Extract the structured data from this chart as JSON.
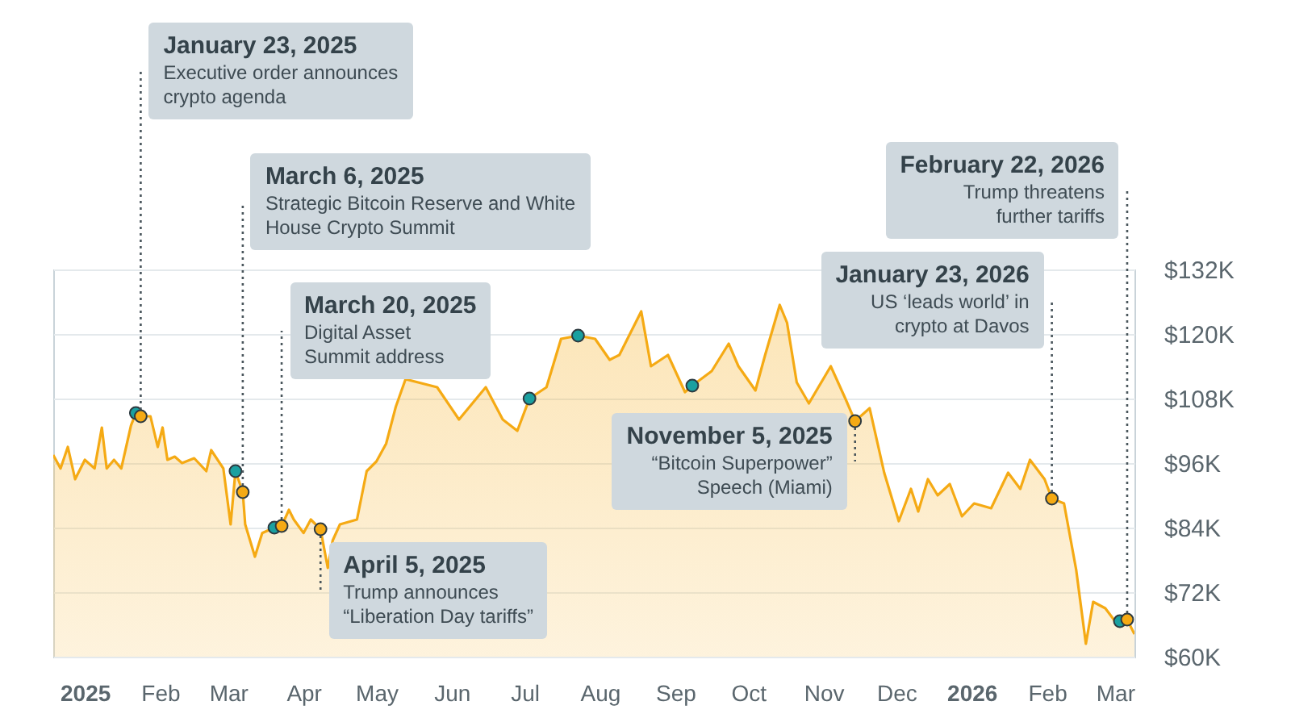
{
  "chart_data": {
    "type": "area",
    "x": [
      "2024-12-19",
      "2024-12-22",
      "2024-12-25",
      "2024-12-28",
      "2025-01-01",
      "2025-01-05",
      "2025-01-08",
      "2025-01-10",
      "2025-01-13",
      "2025-01-16",
      "2025-01-20",
      "2025-01-22",
      "2025-01-24",
      "2025-01-28",
      "2025-01-31",
      "2025-02-02",
      "2025-02-04",
      "2025-02-07",
      "2025-02-10",
      "2025-02-15",
      "2025-02-20",
      "2025-02-22",
      "2025-02-27",
      "2025-03-02",
      "2025-03-04",
      "2025-03-07",
      "2025-03-08",
      "2025-03-12",
      "2025-03-15",
      "2025-03-20",
      "2025-03-23",
      "2025-03-26",
      "2025-03-28",
      "2025-04-01",
      "2025-04-04",
      "2025-04-08",
      "2025-04-11",
      "2025-04-13",
      "2025-04-16",
      "2025-04-23",
      "2025-04-27",
      "2025-05-01",
      "2025-05-05",
      "2025-05-09",
      "2025-05-13",
      "2025-05-26",
      "2025-06-04",
      "2025-06-15",
      "2025-06-22",
      "2025-06-28",
      "2025-07-03",
      "2025-07-10",
      "2025-07-16",
      "2025-07-23",
      "2025-07-30",
      "2025-08-05",
      "2025-08-09",
      "2025-08-18",
      "2025-08-22",
      "2025-08-29",
      "2025-09-05",
      "2025-09-08",
      "2025-09-16",
      "2025-09-23",
      "2025-09-27",
      "2025-10-04",
      "2025-10-08",
      "2025-10-14",
      "2025-10-17",
      "2025-10-21",
      "2025-10-26",
      "2025-11-04",
      "2025-11-10",
      "2025-11-14",
      "2025-11-20",
      "2025-11-26",
      "2025-12-02",
      "2025-12-07",
      "2025-12-10",
      "2025-12-14",
      "2025-12-18",
      "2025-12-23",
      "2025-12-28",
      "2026-01-02",
      "2026-01-09",
      "2026-01-16",
      "2026-01-21",
      "2026-01-25",
      "2026-01-31",
      "2026-02-03",
      "2026-02-08",
      "2026-02-13",
      "2026-02-17",
      "2026-02-20",
      "2026-02-25",
      "2026-03-02",
      "2026-03-03",
      "2026-03-06",
      "2026-03-09"
    ],
    "series": [
      {
        "color": "#f5aa14",
        "values": [
          97.5,
          95,
          99,
          93,
          96.6,
          95,
          102.6,
          95,
          96.6,
          95,
          103,
          105.3,
          104.7,
          104.7,
          99,
          102.6,
          96.6,
          97.2,
          96,
          96.9,
          94.5,
          98.4,
          95,
          84.6,
          94.5,
          90.6,
          84.6,
          78.6,
          83,
          84,
          84.3,
          87.3,
          85.5,
          83,
          85.5,
          83.7,
          76.5,
          81.6,
          84.6,
          85.5,
          94.5,
          96.3,
          99.6,
          106.5,
          111.6,
          110.1,
          104.1,
          110.1,
          104.1,
          102,
          108,
          110.1,
          119.1,
          119.7,
          119.1,
          115.2,
          116.1,
          124.2,
          114,
          116.1,
          109.2,
          110.4,
          113.1,
          118.2,
          114,
          109.5,
          116.1,
          125.4,
          122.1,
          111,
          107.1,
          114,
          108,
          103.8,
          106.2,
          94.2,
          85.2,
          91.2,
          87,
          93,
          90,
          92.1,
          86.1,
          88.5,
          87.6,
          94.2,
          91.2,
          96.6,
          93,
          89.4,
          88.5,
          76.2,
          62.4,
          70.2,
          69,
          66,
          66.6,
          66.9,
          64.2
        ]
      },
      {
        "type": "scatter",
        "color": "#1aa0a0",
        "marker": "circle",
        "x": [
          "2025-01-22",
          "2025-03-04",
          "2025-03-20",
          "2025-07-03",
          "2025-07-23",
          "2025-09-08",
          "2026-03-03"
        ],
        "values": [
          105.3,
          94.5,
          84,
          108,
          119.7,
          110.4,
          66.6
        ]
      }
    ],
    "xlim": [
      "2024-12-19",
      "2026-03-09"
    ],
    "xticks": [
      {
        "value": "2025-01-01",
        "label": "2025"
      },
      {
        "value": "2025-02-01",
        "label": "Feb"
      },
      {
        "value": "2025-03-01",
        "label": "Mar"
      },
      {
        "value": "2025-04-01",
        "label": "Apr"
      },
      {
        "value": "2025-05-01",
        "label": "May"
      },
      {
        "value": "2025-06-01",
        "label": "Jun"
      },
      {
        "value": "2025-07-01",
        "label": "Jul"
      },
      {
        "value": "2025-08-01",
        "label": "Aug"
      },
      {
        "value": "2025-09-01",
        "label": "Sep"
      },
      {
        "value": "2025-10-01",
        "label": "Oct"
      },
      {
        "value": "2025-11-01",
        "label": "Nov"
      },
      {
        "value": "2025-12-01",
        "label": "Dec"
      },
      {
        "value": "2026-01-01",
        "label": "2026"
      },
      {
        "value": "2026-02-01",
        "label": "Feb"
      },
      {
        "value": "2026-03-01",
        "label": "Mar"
      }
    ],
    "ylim": [
      60,
      132
    ],
    "yticks": [
      {
        "value": 60,
        "label": "$60K"
      },
      {
        "value": 72,
        "label": "$72K"
      },
      {
        "value": 84,
        "label": "$84K"
      },
      {
        "value": 96,
        "label": "$96K"
      },
      {
        "value": 108,
        "label": "$108K"
      },
      {
        "value": 120,
        "label": "$120K"
      },
      {
        "value": 132,
        "label": "$132K"
      }
    ],
    "grid": "y",
    "annotations": [
      {
        "text": "January 23, 2025\nExecutive order announces\ncrypto agenda",
        "x": "2025-01-24",
        "y": 104.7
      },
      {
        "text": "March 6, 2025\nStrategic Bitcoin Reserve and White\nHouse Crypto Summit",
        "x": "2025-03-07",
        "y": 90.6
      },
      {
        "text": "March 20, 2025\nDigital Asset\nSummit address",
        "x": "2025-03-23",
        "y": 84.3
      },
      {
        "text": "April 5, 2025\nTrump announces\n“Liberation Day tariffs”",
        "x": "2025-04-08",
        "y": 83.7
      },
      {
        "text": "November 5, 2025\n“Bitcoin Superpower”\nSpeech (Miami)",
        "x": "2025-11-14",
        "y": 103.8
      },
      {
        "text": "January 23, 2026\nUS ‘leads world’ in\ncrypto at Davos",
        "x": "2026-02-03",
        "y": 89.4
      },
      {
        "text": "February 22, 2026\nTrump threatens\nfurther tariffs",
        "x": "2026-03-06",
        "y": 66.9
      }
    ]
  }
}
